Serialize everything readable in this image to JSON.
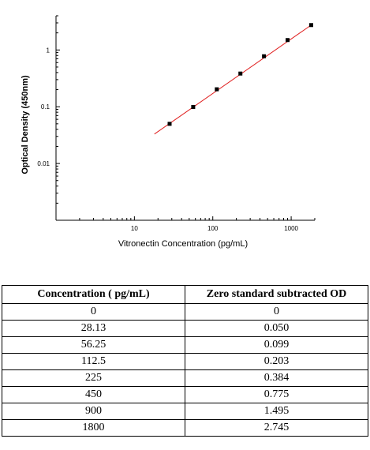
{
  "chart_data": {
    "type": "scatter",
    "xlabel": "Vitronectin Concentration (pg/mL)",
    "ylabel": "Optical Density (450nm)",
    "xscale": "log",
    "yscale": "log",
    "xlim": [
      1,
      2000
    ],
    "ylim": [
      0.001,
      4
    ],
    "x_ticks": [
      {
        "value": 10,
        "label": "10"
      },
      {
        "value": 100,
        "label": "100"
      },
      {
        "value": 1000,
        "label": "1000"
      }
    ],
    "y_ticks": [
      {
        "value": 0.01,
        "label": "0.01"
      },
      {
        "value": 0.1,
        "label": "0.1"
      },
      {
        "value": 1,
        "label": "1"
      }
    ],
    "points": [
      {
        "x": 28.13,
        "y": 0.05
      },
      {
        "x": 56.25,
        "y": 0.099
      },
      {
        "x": 112.5,
        "y": 0.203
      },
      {
        "x": 225,
        "y": 0.384
      },
      {
        "x": 450,
        "y": 0.775
      },
      {
        "x": 900,
        "y": 1.495
      },
      {
        "x": 1800,
        "y": 2.745
      }
    ],
    "fit_line": {
      "x": [
        18,
        1800
      ],
      "y": [
        0.033,
        2.745
      ],
      "color": "#e02020"
    },
    "marker_color": "#000000",
    "grid": false
  },
  "table": {
    "headers": [
      "Concentration ( pg/mL)",
      "Zero standard subtracted OD"
    ],
    "rows": [
      [
        "0",
        "0"
      ],
      [
        "28.13",
        "0.050"
      ],
      [
        "56.25",
        "0.099"
      ],
      [
        "112.5",
        "0.203"
      ],
      [
        "225",
        "0.384"
      ],
      [
        "450",
        "0.775"
      ],
      [
        "900",
        "1.495"
      ],
      [
        "1800",
        "2.745"
      ]
    ]
  }
}
